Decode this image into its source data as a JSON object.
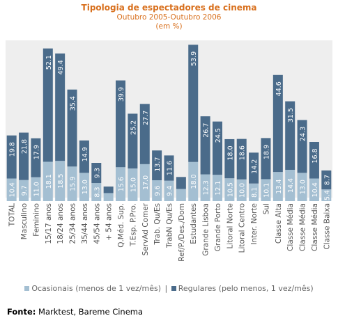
{
  "chart_data": {
    "type": "bar",
    "stacked": true,
    "title": "Tipologia de espectadores de cinema",
    "subtitle": "Outubro 2005-Outubro 2006",
    "unit": "(em %)",
    "categories": [
      "TOTAL",
      "Masculino",
      "Feminino",
      "15/17 anos",
      "18/24 anos",
      "25/34 anos",
      "35/44 anos",
      "45/54 anos",
      "+ 54  anos",
      "Q.Méd. Sup.",
      "T.Esp. P.Pro.",
      "ServAd Comer",
      "Trab. Qu/Es",
      "TrabN Qu/Es",
      "Ref/P./Des./Dom",
      "Estudantes",
      "Grande Lisboa",
      "Grande Porto",
      "Litoral Norte",
      "Litoral Centro",
      "Inter. Norte",
      "Sul",
      "Classe Alta",
      "Classe Média",
      "Classe Média",
      "Classe Média",
      "Classe Baixa"
    ],
    "series": [
      {
        "name": "Ocasionais (menos de 1 vez/mês)",
        "color": "#a4bfd2",
        "values": [
          10.4,
          9.7,
          11.0,
          18.1,
          18.5,
          15.9,
          13.0,
          8.3,
          3.7,
          15.6,
          15.0,
          17.0,
          9.6,
          9.4,
          5.6,
          18.0,
          12.3,
          12.1,
          10.5,
          10.0,
          8.1,
          10.1,
          13.4,
          14.4,
          13.0,
          10.4,
          5.4
        ],
        "labels": [
          "10.4",
          "9.7",
          "11.0",
          "18.1",
          "18.5",
          "15.9",
          "13.0",
          "8.3",
          "",
          "15.6",
          "15.0",
          "17.0",
          "9.6",
          "9.4",
          "",
          "18.0",
          "12.3",
          "12.1",
          "10.5",
          "10.0",
          "8.1",
          "10.1",
          "13.4",
          "14.4",
          "13.0",
          "10.4",
          "5.4"
        ]
      },
      {
        "name": "Regulares (pelo menos, 1 vez/mês)",
        "color": "#4a6b8a",
        "values": [
          19.8,
          21.8,
          17.9,
          52.1,
          49.4,
          35.4,
          14.9,
          9.3,
          3.0,
          39.9,
          25.2,
          27.7,
          13.7,
          11.6,
          5.5,
          53.9,
          26.7,
          24.5,
          18.0,
          18.6,
          14.2,
          18.9,
          44.6,
          31.5,
          24.3,
          16.8,
          8.7
        ],
        "labels": [
          "19.8",
          "21.8",
          "17.9",
          "52.1",
          "49.4",
          "35.4",
          "14.9",
          "9.3",
          "",
          "39.9",
          "25.2",
          "27.7",
          "13.7",
          "11.6",
          "",
          "53.9",
          "26.7",
          "24.5",
          "18.0",
          "18.6",
          "14.2",
          "18.9",
          "44.6",
          "31.5",
          "24.3",
          "16.8",
          "8.7"
        ]
      }
    ],
    "ylim": [
      0,
      80
    ]
  },
  "source": {
    "label": "Fonte:",
    "text": " Marktest, Bareme Cinema"
  }
}
